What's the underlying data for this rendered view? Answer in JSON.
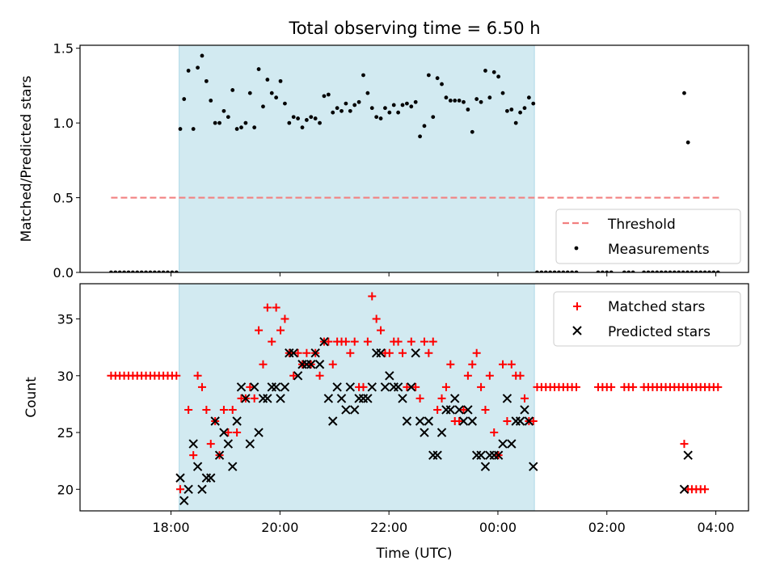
{
  "title": "Total observing time = 6.50 h",
  "colors": {
    "shade": "#add8e6",
    "threshold": "#f28080",
    "measurement": "#000000",
    "matched": "#ff0000",
    "predicted": "#000000"
  },
  "chart_data": [
    {
      "type": "scatter",
      "ylabel": "Matched/Predicted stars",
      "xlim": [
        16.33,
        28.6
      ],
      "ylim": [
        0.0,
        1.52
      ],
      "yticks": [
        0.0,
        0.5,
        1.0,
        1.5
      ],
      "ytick_labels": [
        "0.0",
        "0.5",
        "1.0",
        "1.5"
      ],
      "xticks": [
        18,
        20,
        22,
        24,
        26,
        28
      ],
      "shaded_x_range": [
        18.15,
        24.67
      ],
      "threshold": {
        "name": "Threshold",
        "y": 0.5,
        "x_range": [
          16.9,
          28.08
        ],
        "style": "dashed"
      },
      "legend": {
        "position": "lower-right",
        "entries": [
          "Threshold",
          "Measurements"
        ]
      },
      "series": [
        {
          "name": "Measurements",
          "marker": "dot",
          "x": [
            16.9,
            16.98,
            17.06,
            17.14,
            17.22,
            17.3,
            17.38,
            17.46,
            17.54,
            17.62,
            17.7,
            17.78,
            17.86,
            17.94,
            18.02,
            18.1,
            18.17,
            18.24,
            18.32,
            18.41,
            18.49,
            18.57,
            18.65,
            18.73,
            18.81,
            18.89,
            18.97,
            19.05,
            19.13,
            19.21,
            19.29,
            19.37,
            19.45,
            19.53,
            19.61,
            19.69,
            19.77,
            19.85,
            19.93,
            20.01,
            20.09,
            20.17,
            20.25,
            20.33,
            20.41,
            20.49,
            20.57,
            20.65,
            20.73,
            20.81,
            20.89,
            20.97,
            21.05,
            21.13,
            21.21,
            21.29,
            21.37,
            21.45,
            21.53,
            21.61,
            21.69,
            21.77,
            21.85,
            21.93,
            22.01,
            22.09,
            22.17,
            22.25,
            22.33,
            22.41,
            22.49,
            22.57,
            22.65,
            22.73,
            22.81,
            22.89,
            22.97,
            23.05,
            23.13,
            23.21,
            23.29,
            23.37,
            23.45,
            23.53,
            23.61,
            23.69,
            23.77,
            23.85,
            23.93,
            24.01,
            24.09,
            24.17,
            24.25,
            24.33,
            24.41,
            24.49,
            24.57,
            24.65,
            24.72,
            24.8,
            24.88,
            24.96,
            25.04,
            25.12,
            25.2,
            25.28,
            25.36,
            25.44,
            25.84,
            25.92,
            26.0,
            26.08,
            26.32,
            26.4,
            26.48,
            26.68,
            26.76,
            26.84,
            26.92,
            27.0,
            27.08,
            27.16,
            27.24,
            27.32,
            27.4,
            27.48,
            27.56,
            27.64,
            27.72,
            27.8,
            27.88,
            27.96,
            28.04,
            27.42,
            27.49
          ],
          "y": [
            0,
            0,
            0,
            0,
            0,
            0,
            0,
            0,
            0,
            0,
            0,
            0,
            0,
            0,
            0,
            0,
            0.96,
            1.16,
            1.35,
            0.96,
            1.37,
            1.45,
            1.28,
            1.15,
            1.0,
            1.0,
            1.08,
            1.04,
            1.22,
            0.96,
            0.97,
            1.0,
            1.2,
            0.97,
            1.36,
            1.11,
            1.29,
            1.2,
            1.17,
            1.28,
            1.13,
            1.0,
            1.04,
            1.03,
            0.97,
            1.02,
            1.04,
            1.03,
            1.0,
            1.18,
            1.19,
            1.07,
            1.1,
            1.08,
            1.13,
            1.08,
            1.12,
            1.14,
            1.32,
            1.2,
            1.1,
            1.04,
            1.03,
            1.1,
            1.07,
            1.12,
            1.07,
            1.12,
            1.13,
            1.11,
            1.14,
            0.91,
            0.98,
            1.32,
            1.04,
            1.3,
            1.26,
            1.17,
            1.15,
            1.15,
            1.15,
            1.14,
            1.09,
            0.94,
            1.16,
            1.14,
            1.35,
            1.17,
            1.34,
            1.31,
            1.2,
            1.08,
            1.09,
            1.0,
            1.07,
            1.1,
            1.17,
            1.13,
            0,
            0,
            0,
            0,
            0,
            0,
            0,
            0,
            0,
            0,
            0,
            0,
            0,
            0,
            0,
            0,
            0,
            0,
            0,
            0,
            0,
            0,
            0,
            0,
            0,
            0,
            0,
            0,
            0,
            0,
            0,
            0,
            0,
            0,
            0,
            1.2,
            0.87
          ]
        }
      ]
    },
    {
      "type": "scatter",
      "ylabel": "Count",
      "xlabel": "Time (UTC)",
      "xlim": [
        16.33,
        28.6
      ],
      "ylim": [
        18.1,
        38.1
      ],
      "yticks": [
        20,
        25,
        30,
        35
      ],
      "ytick_labels": [
        "20",
        "25",
        "30",
        "35"
      ],
      "xticks": [
        18,
        20,
        22,
        24,
        26,
        28
      ],
      "xtick_labels": [
        "18:00",
        "20:00",
        "22:00",
        "00:00",
        "02:00",
        "04:00"
      ],
      "shaded_x_range": [
        18.15,
        24.67
      ],
      "legend": {
        "position": "upper-right",
        "entries": [
          "Matched stars",
          "Predicted stars"
        ]
      },
      "series": [
        {
          "name": "Matched stars",
          "marker": "plus",
          "x": [
            16.9,
            16.98,
            17.06,
            17.14,
            17.22,
            17.3,
            17.38,
            17.46,
            17.54,
            17.62,
            17.7,
            17.78,
            17.86,
            17.94,
            18.02,
            18.1,
            18.17,
            18.32,
            18.41,
            18.49,
            18.57,
            18.65,
            18.73,
            18.81,
            18.89,
            18.97,
            19.05,
            19.13,
            19.21,
            19.29,
            19.37,
            19.45,
            19.53,
            19.61,
            19.69,
            19.77,
            19.85,
            19.93,
            20.01,
            20.09,
            20.17,
            20.25,
            20.33,
            20.41,
            20.49,
            20.57,
            20.65,
            20.73,
            20.81,
            20.89,
            20.97,
            21.05,
            21.13,
            21.21,
            21.29,
            21.37,
            21.45,
            21.53,
            21.61,
            21.69,
            21.77,
            21.85,
            21.93,
            22.01,
            22.09,
            22.17,
            22.25,
            22.33,
            22.41,
            22.49,
            22.57,
            22.65,
            22.73,
            22.81,
            22.89,
            22.97,
            23.05,
            23.13,
            23.21,
            23.29,
            23.37,
            23.45,
            23.53,
            23.61,
            23.69,
            23.77,
            23.85,
            23.93,
            24.01,
            24.09,
            24.17,
            24.25,
            24.33,
            24.41,
            24.49,
            24.57,
            24.65,
            24.72,
            24.8,
            24.88,
            24.96,
            25.04,
            25.12,
            25.2,
            25.28,
            25.36,
            25.44,
            25.84,
            25.92,
            26.0,
            26.08,
            26.32,
            26.4,
            26.48,
            26.68,
            26.76,
            26.84,
            26.92,
            27.0,
            27.08,
            27.16,
            27.24,
            27.32,
            27.4,
            27.48,
            27.56,
            27.64,
            27.72,
            27.8,
            27.88,
            27.96,
            28.04,
            27.42,
            27.49,
            27.56,
            27.64,
            27.72,
            27.8
          ],
          "y": [
            30,
            30,
            30,
            30,
            30,
            30,
            30,
            30,
            30,
            30,
            30,
            30,
            30,
            30,
            30,
            30,
            20,
            27,
            23,
            30,
            29,
            27,
            24,
            26,
            23,
            27,
            25,
            27,
            25,
            28,
            28,
            29,
            28,
            34,
            31,
            36,
            33,
            36,
            34,
            35,
            32,
            30,
            32,
            31,
            32,
            31,
            32,
            30,
            33,
            33,
            31,
            33,
            33,
            33,
            32,
            33,
            29,
            29,
            33,
            37,
            35,
            34,
            32,
            32,
            33,
            33,
            32,
            29,
            33,
            29,
            28,
            33,
            32,
            33,
            27,
            28,
            29,
            31,
            26,
            26,
            27,
            30,
            31,
            32,
            29,
            27,
            30,
            25,
            23,
            31,
            26,
            31,
            30,
            30,
            28,
            26,
            26,
            29,
            29,
            29,
            29,
            29,
            29,
            29,
            29,
            29,
            29,
            29,
            29,
            29,
            29,
            29,
            29,
            29,
            29,
            29,
            29,
            29,
            29,
            29,
            29,
            29,
            29,
            29,
            29,
            29,
            29,
            29,
            29,
            29,
            29,
            29,
            24,
            20,
            20,
            20,
            20,
            20
          ]
        },
        {
          "name": "Predicted stars",
          "marker": "x",
          "x": [
            18.17,
            18.24,
            18.32,
            18.41,
            18.49,
            18.57,
            18.65,
            18.73,
            18.81,
            18.89,
            18.97,
            19.05,
            19.13,
            19.21,
            19.29,
            19.37,
            19.45,
            19.53,
            19.61,
            19.69,
            19.77,
            19.85,
            19.93,
            20.01,
            20.09,
            20.17,
            20.25,
            20.33,
            20.41,
            20.49,
            20.57,
            20.65,
            20.73,
            20.81,
            20.89,
            20.97,
            21.05,
            21.13,
            21.21,
            21.29,
            21.37,
            21.45,
            21.53,
            21.61,
            21.69,
            21.77,
            21.85,
            21.93,
            22.01,
            22.09,
            22.17,
            22.25,
            22.33,
            22.41,
            22.49,
            22.57,
            22.65,
            22.73,
            22.81,
            22.89,
            22.97,
            23.05,
            23.13,
            23.21,
            23.29,
            23.37,
            23.45,
            23.53,
            23.61,
            23.69,
            23.77,
            23.85,
            23.93,
            24.01,
            24.09,
            24.17,
            24.25,
            24.33,
            24.41,
            24.49,
            24.57,
            24.65,
            27.42,
            27.49
          ],
          "y": [
            21,
            19,
            20,
            24,
            22,
            20,
            21,
            21,
            26,
            23,
            25,
            24,
            22,
            26,
            29,
            28,
            24,
            29,
            25,
            28,
            28,
            29,
            29,
            28,
            29,
            32,
            32,
            30,
            31,
            31,
            31,
            32,
            31,
            33,
            28,
            26,
            29,
            28,
            27,
            29,
            27,
            28,
            28,
            28,
            29,
            32,
            32,
            29,
            30,
            29,
            29,
            28,
            26,
            29,
            32,
            26,
            25,
            26,
            23,
            23,
            25,
            27,
            27,
            28,
            27,
            26,
            27,
            26,
            23,
            23,
            22,
            23,
            23,
            23,
            24,
            28,
            24,
            26,
            26,
            27,
            26,
            22,
            20,
            23
          ]
        }
      ]
    }
  ]
}
